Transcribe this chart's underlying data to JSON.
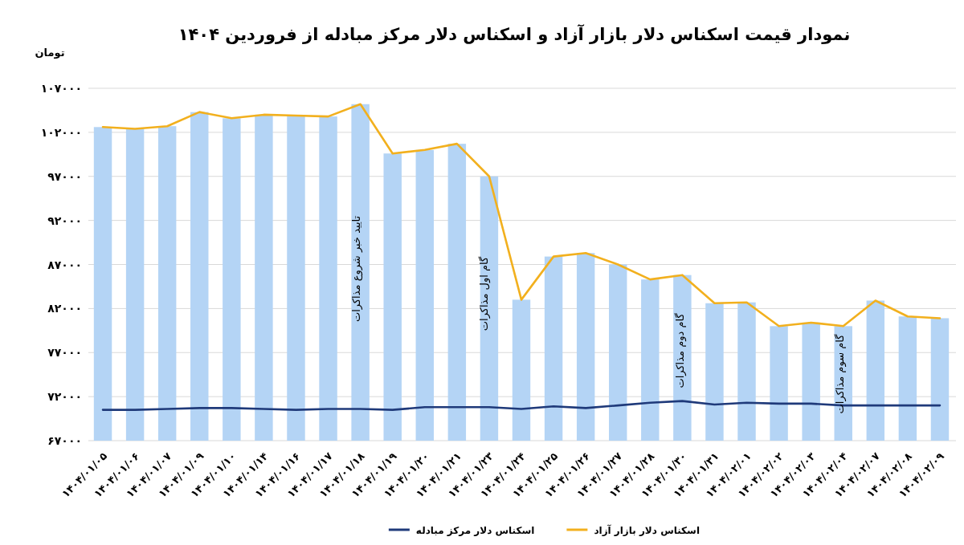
{
  "chart_data": {
    "type": "bar",
    "title": "نمودار قیمت اسکناس دلار بازار آزاد و اسکناس دلار مرکز مبادله از فروردین ۱۴۰۴",
    "ylabel": "تومان",
    "categories": [
      "۱۴۰۴/۰۱/۰۵",
      "۱۴۰۴/۰۱/۰۶",
      "۱۴۰۴/۰۱/۰۷",
      "۱۴۰۴/۰۱/۰۹",
      "۱۴۰۴/۰۱/۱۰",
      "۱۴۰۴/۰۱/۱۴",
      "۱۴۰۴/۰۱/۱۶",
      "۱۴۰۴/۰۱/۱۷",
      "۱۴۰۴/۰۱/۱۸",
      "۱۴۰۴/۰۱/۱۹",
      "۱۴۰۴/۰۱/۲۰",
      "۱۴۰۴/۰۱/۲۱",
      "۱۴۰۴/۰۱/۲۳",
      "۱۴۰۴/۰۱/۲۴",
      "۱۴۰۴/۰۱/۲۵",
      "۱۴۰۴/۰۱/۲۶",
      "۱۴۰۴/۰۱/۲۷",
      "۱۴۰۴/۰۱/۲۸",
      "۱۴۰۴/۰۱/۳۰",
      "۱۴۰۴/۰۱/۳۱",
      "۱۴۰۴/۰۲/۰۱",
      "۱۴۰۴/۰۲/۰۲",
      "۱۴۰۴/۰۲/۰۳",
      "۱۴۰۴/۰۲/۰۴",
      "۱۴۰۴/۰۲/۰۷",
      "۱۴۰۴/۰۲/۰۸",
      "۱۴۰۴/۰۲/۰۹"
    ],
    "series": [
      {
        "color": "#b4d4f5",
        "values": [
          102600,
          102400,
          102700,
          104300,
          103600,
          104000,
          103900,
          103800,
          105200,
          99600,
          100000,
          100700,
          97000,
          83000,
          87900,
          88300,
          87000,
          85300,
          85800,
          82600,
          82700,
          80000,
          80400,
          80000,
          82900,
          81100,
          80900
        ]
      },
      {
        "type": "line",
        "name": "اسکناس دلار بازار آزاد",
        "color": "#f2b01e",
        "values": [
          102600,
          102400,
          102700,
          104300,
          103600,
          104000,
          103900,
          103800,
          105200,
          99600,
          100000,
          100700,
          97000,
          83000,
          87900,
          88300,
          87000,
          85300,
          85800,
          82600,
          82700,
          80000,
          80400,
          80000,
          82900,
          81100,
          80900
        ]
      },
      {
        "type": "line",
        "name": "اسکناس دلار مرکز مبادله",
        "color": "#1f3a7a",
        "values": [
          70500,
          70500,
          70600,
          70700,
          70700,
          70600,
          70500,
          70600,
          70600,
          70500,
          70800,
          70800,
          70800,
          70600,
          70900,
          70700,
          71000,
          71300,
          71500,
          71100,
          71300,
          71200,
          71200,
          71000,
          71000,
          71000,
          71000
        ]
      }
    ],
    "ylim": [
      67000,
      107000
    ],
    "yticks": [
      {
        "value": 67000,
        "label": "۶۷۰۰۰"
      },
      {
        "value": 72000,
        "label": "۷۲۰۰۰"
      },
      {
        "value": 77000,
        "label": "۷۷۰۰۰"
      },
      {
        "value": 82000,
        "label": "۸۲۰۰۰"
      },
      {
        "value": 87000,
        "label": "۸۷۰۰۰"
      },
      {
        "value": 92000,
        "label": "۹۲۰۰۰"
      },
      {
        "value": 97000,
        "label": "۹۷۰۰۰"
      },
      {
        "value": 102000,
        "label": "۱۰۲۰۰۰"
      },
      {
        "value": 107000,
        "label": "۱۰۷۰۰۰"
      }
    ],
    "grid": "y",
    "legend": "bottom",
    "annotations": [
      "تایید خبر شروع مذاکرات",
      "گام اول مذاکرات",
      "گام دوم مذاکرات",
      "گام سوم مذاکرات"
    ]
  }
}
